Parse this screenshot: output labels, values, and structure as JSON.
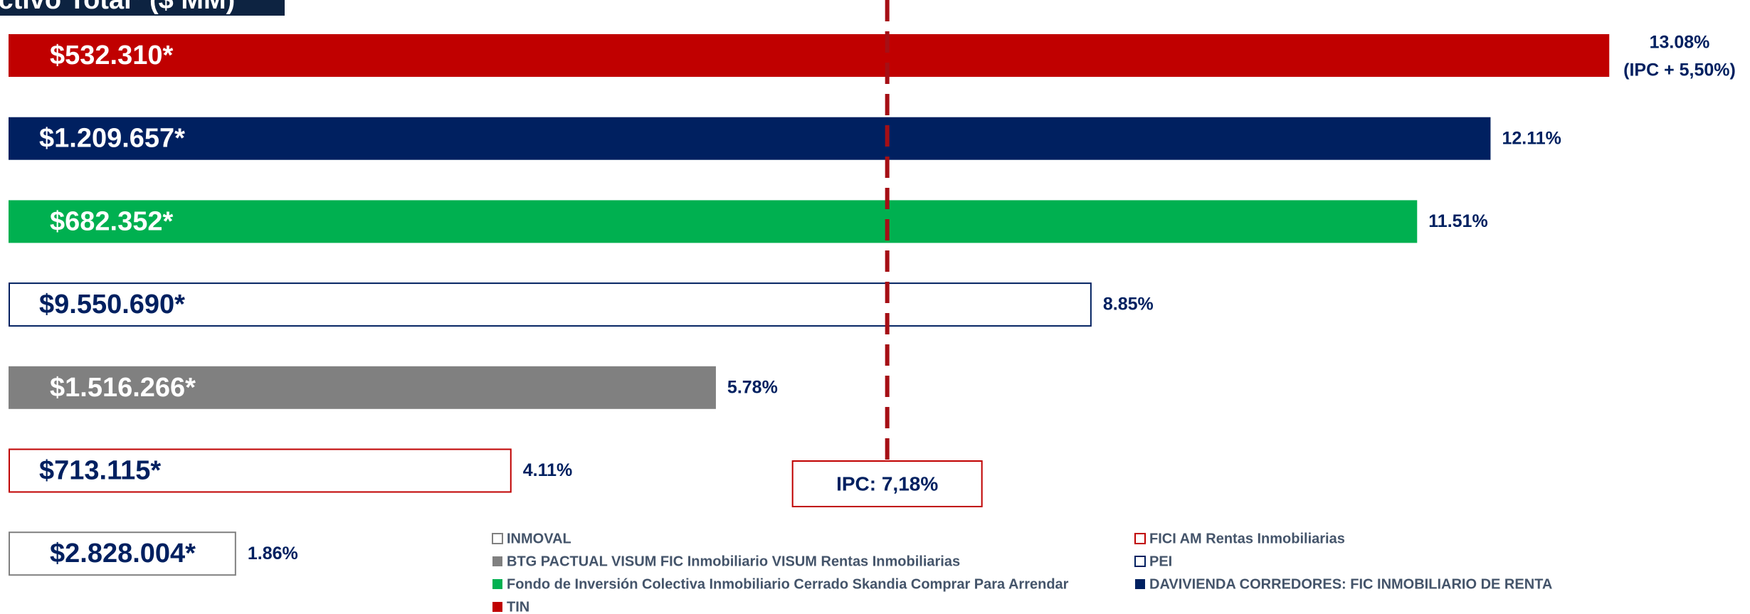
{
  "chart_data": {
    "type": "bar",
    "orientation": "horizontal",
    "title": "Activo Total* ($ MM)",
    "xlim": [
      0,
      14.23
    ],
    "series": [
      {
        "name": "TIN",
        "color": "#c00000",
        "outline": false,
        "values": [
          13.08
        ],
        "value_labels": [
          "13.08%"
        ],
        "note": "(IPC + 5,50%)",
        "label": "$532.310*"
      },
      {
        "name": "DAVIVIENDA CORREDORES: FIC INMOBILIARIO DE RENTA",
        "color": "#002060",
        "outline": false,
        "values": [
          12.11
        ],
        "value_labels": [
          "12.11%"
        ],
        "label": "$1.209.657*"
      },
      {
        "name": "Fondo de Inversión Colectiva Inmobiliario Cerrado Skandia Comprar Para Arrendar",
        "color": "#00b050",
        "outline": false,
        "values": [
          11.51
        ],
        "value_labels": [
          "11.51%"
        ],
        "label": "$682.352*"
      },
      {
        "name": "PEI",
        "color": "#002060",
        "outline": true,
        "values": [
          8.85
        ],
        "value_labels": [
          "8.85%"
        ],
        "label": "$9.550.690*"
      },
      {
        "name": "BTG PACTUAL VISUM FIC Inmobiliario VISUM Rentas Inmobiliarias",
        "color": "#808080",
        "outline": false,
        "values": [
          5.78
        ],
        "value_labels": [
          "5.78%"
        ],
        "label": "$1.516.266*"
      },
      {
        "name": "FICI AM Rentas Inmobiliarias",
        "color": "#c00000",
        "outline": true,
        "values": [
          4.11
        ],
        "value_labels": [
          "4.11%"
        ],
        "label": "$713.115*"
      },
      {
        "name": "INMOVAL",
        "color": "#808080",
        "outline": true,
        "values": [
          1.86
        ],
        "value_labels": [
          "1.86%"
        ],
        "label": "$2.828.004*"
      }
    ],
    "reference_line": {
      "value": 7.18,
      "label": "IPC: 7,18%",
      "color": "#a50f15"
    }
  }
}
